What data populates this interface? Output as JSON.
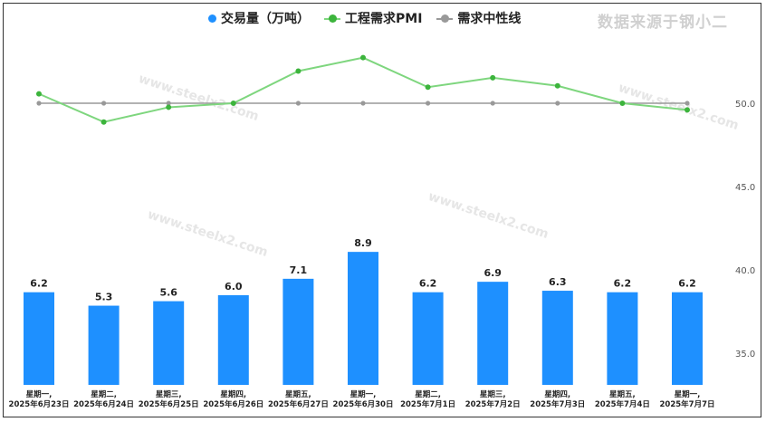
{
  "legend": {
    "volume_label": "交易量（万吨）",
    "pmi_label": "工程需求PMI",
    "neutral_label": "需求中性线"
  },
  "source_label": "数据来源于钢小二",
  "watermark": "www.steelx2.com",
  "colors": {
    "bar": "#1E90FF",
    "pmi": "#7ED67E",
    "pmi_dot": "#3CB43C",
    "neutral": "#999999"
  },
  "chart_data": {
    "type": "bar",
    "categories": [
      [
        "星期一,",
        "2025年6月23日"
      ],
      [
        "星期二,",
        "2025年6月24日"
      ],
      [
        "星期三,",
        "2025年6月25日"
      ],
      [
        "星期四,",
        "2025年6月26日"
      ],
      [
        "星期五,",
        "2025年6月27日"
      ],
      [
        "星期一,",
        "2025年6月30日"
      ],
      [
        "星期二,",
        "2025年7月1日"
      ],
      [
        "星期三,",
        "2025年7月2日"
      ],
      [
        "星期四,",
        "2025年7月3日"
      ],
      [
        "星期五,",
        "2025年7月4日"
      ],
      [
        "星期一,",
        "2025年7月7日"
      ]
    ],
    "series": [
      {
        "name": "交易量（万吨）",
        "type": "bar",
        "values": [
          6.2,
          5.3,
          5.6,
          6.0,
          7.1,
          8.9,
          6.2,
          6.9,
          6.3,
          6.2,
          6.2
        ]
      },
      {
        "name": "工程需求PMI",
        "type": "line",
        "values": [
          50.7,
          48.6,
          49.7,
          50.0,
          52.4,
          53.4,
          51.2,
          51.9,
          51.3,
          50.0,
          49.5
        ]
      },
      {
        "name": "需求中性线",
        "type": "line",
        "values": [
          50,
          50,
          50,
          50,
          50,
          50,
          50,
          50,
          50,
          50,
          50
        ]
      }
    ],
    "right_axis": {
      "ticks": [
        "50.0",
        "45.0",
        "40.0",
        "35.0"
      ]
    },
    "legend_position": "top"
  }
}
